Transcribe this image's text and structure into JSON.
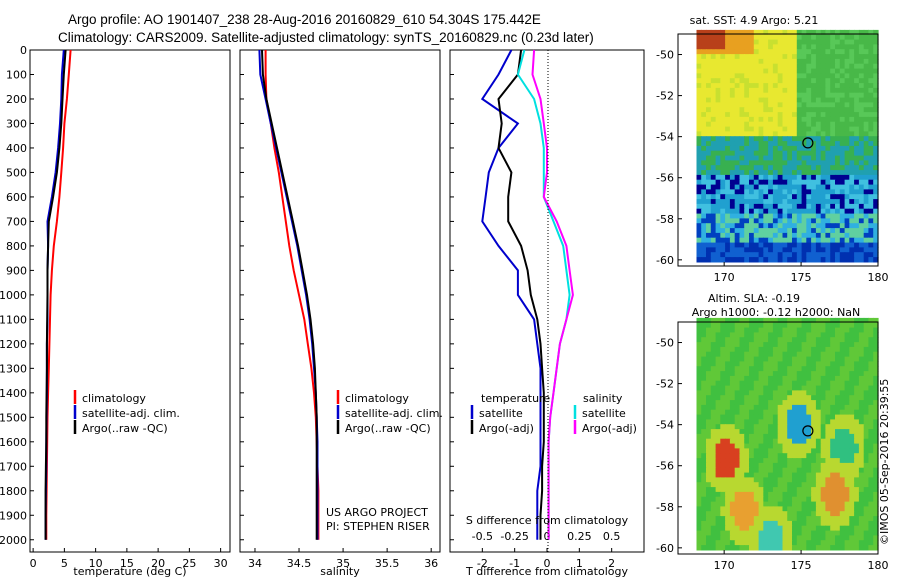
{
  "header": {
    "line1": "Argo profile: AO 1901407_238 28-Aug-2016 20160829_610 54.304S 175.442E",
    "line2": "Climatology: CARS2009. Satellite-adjusted climatology: synTS_20160829.nc (0.23d later)"
  },
  "footer": {
    "stamp": "©IMOS 05-Sep-2016 20:39:55",
    "project_line1": "US ARGO PROJECT",
    "project_line2": "PI: STEPHEN RISER"
  },
  "colors": {
    "climatology": "#ff0000",
    "satellite": "#0000cc",
    "argo": "#000000",
    "sat_salinity": "#00e0e0",
    "argo_salinity_adj": "#ff00ff"
  },
  "chart_data": [
    {
      "type": "line",
      "id": "temperature",
      "xlabel": "temperature (deg C)",
      "ylabel": "",
      "xlim": [
        -0.5,
        31.5
      ],
      "ylim": [
        2050,
        0
      ],
      "xticks": [
        0,
        5,
        10,
        15,
        20,
        25,
        30
      ],
      "yticks": [
        0,
        100,
        200,
        300,
        400,
        500,
        600,
        700,
        800,
        900,
        1000,
        1100,
        1200,
        1300,
        1400,
        1500,
        1600,
        1700,
        1800,
        1900,
        2000
      ],
      "legend": [
        "climatology",
        "satellite-adj. clim.",
        "Argo(..raw -QC)"
      ],
      "series": [
        {
          "name": "climatology",
          "color": "#ff0000",
          "x": [
            6.0,
            5.7,
            5.4,
            5.0,
            4.8,
            4.5,
            4.2,
            3.8,
            3.3,
            3.0,
            2.8,
            2.7,
            2.6,
            2.5,
            2.4,
            2.3,
            2.25,
            2.2,
            2.15,
            2.1,
            2.1
          ],
          "y": [
            0,
            100,
            200,
            300,
            400,
            500,
            600,
            700,
            800,
            900,
            1000,
            1100,
            1200,
            1300,
            1400,
            1500,
            1600,
            1700,
            1800,
            1900,
            2000
          ]
        },
        {
          "name": "satellite-adj. clim.",
          "color": "#0000cc",
          "x": [
            4.9,
            4.6,
            4.5,
            4.3,
            4.0,
            3.6,
            3.0,
            2.3,
            2.4,
            2.3,
            2.3,
            2.3,
            2.2,
            2.2,
            2.2,
            2.15,
            2.1,
            2.1,
            2.05,
            2.0,
            2.0
          ],
          "y": [
            0,
            100,
            200,
            300,
            400,
            500,
            600,
            700,
            800,
            900,
            1000,
            1100,
            1200,
            1300,
            1400,
            1500,
            1600,
            1700,
            1800,
            1900,
            2000
          ]
        },
        {
          "name": "Argo(..raw -QC)",
          "color": "#000000",
          "x": [
            5.2,
            4.9,
            4.7,
            4.5,
            4.2,
            3.8,
            3.2,
            2.5,
            2.4,
            2.3,
            2.3,
            2.25,
            2.2,
            2.2,
            2.15,
            2.1,
            2.1,
            2.05,
            2.0,
            2.0,
            2.0
          ],
          "y": [
            0,
            100,
            200,
            300,
            400,
            500,
            600,
            700,
            800,
            900,
            1000,
            1100,
            1200,
            1300,
            1400,
            1500,
            1600,
            1700,
            1800,
            1900,
            2000
          ]
        }
      ]
    },
    {
      "type": "line",
      "id": "salinity",
      "xlabel": "salinity",
      "ylabel": "",
      "xlim": [
        33.83,
        36.1
      ],
      "ylim": [
        2050,
        0
      ],
      "xticks": [
        34,
        34.5,
        35,
        35.5,
        36
      ],
      "xticklabels": [
        "34",
        "34.5",
        "35",
        "35.5",
        "36"
      ],
      "legend": [
        "climatology",
        "satellite-adj. clim.",
        "Argo(..raw -QC)"
      ],
      "series": [
        {
          "name": "climatology",
          "color": "#ff0000",
          "x": [
            34.12,
            34.12,
            34.13,
            34.18,
            34.22,
            34.27,
            34.31,
            34.35,
            34.39,
            34.44,
            34.5,
            34.56,
            34.6,
            34.64,
            34.67,
            34.69,
            34.7,
            34.71,
            34.72,
            34.72,
            34.72
          ],
          "y": [
            0,
            100,
            200,
            300,
            400,
            500,
            600,
            700,
            800,
            900,
            1000,
            1100,
            1200,
            1300,
            1400,
            1500,
            1600,
            1700,
            1800,
            1900,
            2000
          ]
        },
        {
          "name": "satellite-adj. clim.",
          "color": "#0000cc",
          "x": [
            34.05,
            34.06,
            34.12,
            34.18,
            34.24,
            34.3,
            34.36,
            34.42,
            34.48,
            34.53,
            34.58,
            34.62,
            34.65,
            34.67,
            34.69,
            34.7,
            34.71,
            34.71,
            34.71,
            34.71,
            34.71
          ],
          "y": [
            0,
            100,
            200,
            300,
            400,
            500,
            600,
            700,
            800,
            900,
            1000,
            1100,
            1200,
            1300,
            1400,
            1500,
            1600,
            1700,
            1800,
            1900,
            2000
          ]
        },
        {
          "name": "Argo(..raw -QC)",
          "color": "#000000",
          "x": [
            34.08,
            34.09,
            34.13,
            34.19,
            34.25,
            34.31,
            34.37,
            34.43,
            34.49,
            34.54,
            34.59,
            34.63,
            34.66,
            34.68,
            34.69,
            34.7,
            34.7,
            34.7,
            34.7,
            34.7,
            34.7
          ],
          "y": [
            0,
            100,
            200,
            300,
            400,
            500,
            600,
            700,
            800,
            900,
            1000,
            1100,
            1200,
            1300,
            1400,
            1500,
            1600,
            1700,
            1800,
            1900,
            2000
          ]
        }
      ]
    },
    {
      "type": "line",
      "id": "differences",
      "xlabel": "T difference from climatology",
      "xlabel_top": "S difference from climatology",
      "xlim": [
        -3.0,
        3.0
      ],
      "ylim": [
        2050,
        0
      ],
      "xticks": [
        -2,
        -1,
        0,
        1,
        2
      ],
      "xticks_salinity_labels": [
        "-0.5",
        "-0.25",
        "0",
        "0.25",
        "0.5"
      ],
      "xticks_salinity_positions": [
        -2,
        -1,
        0,
        1,
        2
      ],
      "legend_left_title": "temperature",
      "legend_left": [
        "satellite",
        "Argo(-adj)"
      ],
      "legend_right_title": "salinity",
      "legend_right": [
        "satellite",
        "Argo(-adj)"
      ],
      "series": [
        {
          "name": "satellite",
          "group": "temperature",
          "color": "#0000cc",
          "x": [
            -1.1,
            -1.5,
            -2.0,
            -0.9,
            -1.5,
            -1.8,
            -1.9,
            -2.0,
            -1.5,
            -0.9,
            -0.9,
            -0.4,
            -0.3,
            -0.2,
            -0.2,
            -0.2,
            -0.2,
            -0.2,
            -0.3,
            -0.3,
            -0.3
          ],
          "y": [
            0,
            100,
            200,
            300,
            400,
            500,
            600,
            700,
            800,
            900,
            1000,
            1100,
            1200,
            1300,
            1400,
            1500,
            1600,
            1700,
            1800,
            1900,
            2000
          ]
        },
        {
          "name": "Argo(-adj)",
          "group": "temperature",
          "color": "#000000",
          "x": [
            -0.8,
            -0.9,
            -1.5,
            -1.4,
            -1.5,
            -1.1,
            -1.2,
            -1.2,
            -0.8,
            -0.6,
            -0.5,
            -0.3,
            -0.2,
            -0.15,
            -0.1,
            -0.1,
            -0.1,
            -0.15,
            -0.15,
            -0.2,
            -0.2
          ],
          "y": [
            0,
            100,
            200,
            300,
            400,
            500,
            600,
            700,
            800,
            900,
            1000,
            1100,
            1200,
            1300,
            1400,
            1500,
            1600,
            1700,
            1800,
            1900,
            2000
          ]
        },
        {
          "name": "satellite",
          "group": "salinity",
          "color": "#00e0e0",
          "x": [
            -0.7,
            -0.9,
            -0.4,
            -0.2,
            -0.1,
            -0.1,
            -0.1,
            0.2,
            0.5,
            0.6,
            0.7,
            0.6,
            0.4,
            0.3,
            0.2,
            0.1,
            0.05,
            0.05,
            0.05,
            0.05,
            0.05
          ],
          "y": [
            0,
            100,
            200,
            300,
            400,
            500,
            600,
            700,
            800,
            900,
            1000,
            1100,
            1200,
            1300,
            1400,
            1500,
            1600,
            1700,
            1800,
            1900,
            2000
          ]
        },
        {
          "name": "Argo(-adj)",
          "group": "salinity",
          "color": "#ff00ff",
          "x": [
            -0.4,
            -0.45,
            -0.2,
            -0.1,
            0.0,
            0.0,
            -0.1,
            0.3,
            0.6,
            0.7,
            0.8,
            0.6,
            0.4,
            0.3,
            0.2,
            0.1,
            0.05,
            0.05,
            0.05,
            0.05,
            0.05
          ],
          "y": [
            0,
            100,
            200,
            300,
            400,
            500,
            600,
            700,
            800,
            900,
            1000,
            1100,
            1200,
            1300,
            1400,
            1500,
            1600,
            1700,
            1800,
            1900,
            2000
          ]
        }
      ]
    },
    {
      "type": "heatmap",
      "id": "sst_map",
      "title": "sat. SST: 4.9  Argo: 5.21",
      "xlim": [
        167,
        180
      ],
      "ylim": [
        -60.3,
        -49
      ],
      "xticks": [
        170,
        175,
        180
      ],
      "yticks": [
        -50,
        -52,
        -54,
        -56,
        -58,
        -60
      ],
      "marker": {
        "lon": 175.442,
        "lat": -54.304
      }
    },
    {
      "type": "heatmap",
      "id": "sla_map",
      "title_line1": "Altim. SLA: -0.19",
      "title_line2": "Argo h1000: -0.12  h2000: NaN",
      "xlim": [
        167,
        180
      ],
      "ylim": [
        -60.3,
        -49
      ],
      "xticks": [
        170,
        175,
        180
      ],
      "yticks": [
        -50,
        -52,
        -54,
        -56,
        -58,
        -60
      ],
      "marker": {
        "lon": 175.442,
        "lat": -54.304
      }
    }
  ]
}
